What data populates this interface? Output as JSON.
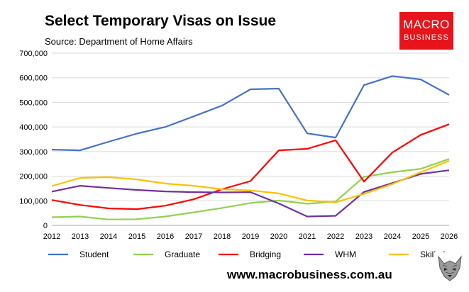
{
  "header": {
    "title": "Select Temporary Visas on Issue",
    "subtitle": "Source: Department of Home Affairs"
  },
  "logo": {
    "line1": "MACRO",
    "line2": "BUSINESS",
    "color": "#e8141b"
  },
  "footer": {
    "url": "www.macrobusiness.com.au"
  },
  "chart_data": {
    "type": "line",
    "x": [
      2012,
      2013,
      2014,
      2015,
      2016,
      2017,
      2018,
      2019,
      2020,
      2021,
      2022,
      2023,
      2024,
      2025,
      2026
    ],
    "xlabels": [
      "2012",
      "2013",
      "2014",
      "2015",
      "2016",
      "2017",
      "2018",
      "2019",
      "2020",
      "2021",
      "2022",
      "2023",
      "2024",
      "2025",
      "2026"
    ],
    "ylim": [
      0,
      700000
    ],
    "yticks": [
      0,
      100000,
      200000,
      300000,
      400000,
      500000,
      600000,
      700000
    ],
    "ytick_labels": [
      "0",
      "100,000",
      "200,000",
      "300,000",
      "400,000",
      "500,000",
      "600,000",
      "700,000"
    ],
    "grid": true,
    "legend_position": "bottom",
    "series": [
      {
        "name": "Student",
        "color": "#4472c4",
        "values": [
          308000,
          305000,
          340000,
          373000,
          400000,
          443000,
          487000,
          553000,
          556000,
          374000,
          357000,
          570000,
          607000,
          593000,
          530000
        ]
      },
      {
        "name": "Graduate",
        "color": "#92d050",
        "values": [
          33000,
          36000,
          24000,
          25000,
          36000,
          53000,
          71000,
          91000,
          101000,
          88000,
          97000,
          197000,
          216000,
          230000,
          270000
        ]
      },
      {
        "name": "Bridging",
        "color": "#ff0000",
        "values": [
          103000,
          83000,
          69000,
          66000,
          80000,
          106000,
          147000,
          180000,
          305000,
          311000,
          346000,
          178000,
          296000,
          368000,
          411000
        ]
      },
      {
        "name": "WHM",
        "color": "#7030a0",
        "values": [
          137000,
          161000,
          152000,
          144000,
          138000,
          135000,
          134000,
          135000,
          89000,
          36000,
          39000,
          136000,
          172000,
          209000,
          224000
        ]
      },
      {
        "name": "Skilled",
        "color": "#ffc000",
        "values": [
          160000,
          193000,
          196000,
          187000,
          170000,
          161000,
          147000,
          142000,
          130000,
          101000,
          94000,
          128000,
          168000,
          216000,
          262000
        ]
      }
    ]
  }
}
